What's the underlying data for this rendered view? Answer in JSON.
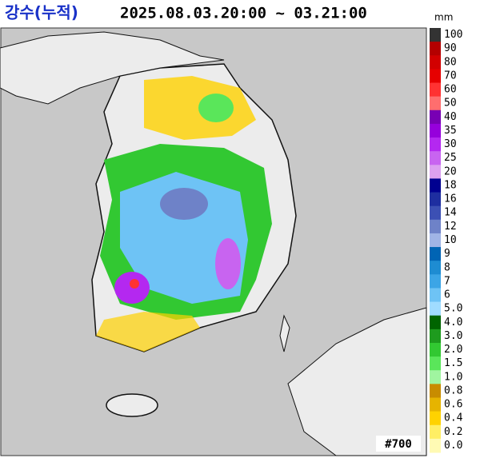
{
  "header": {
    "title": "강수(누적)",
    "period": "2025.08.03.20:00 ~ 03.21:00",
    "unit": "mm"
  },
  "legend": [
    {
      "label": "100",
      "color": "#333333"
    },
    {
      "label": "90",
      "color": "#b40000"
    },
    {
      "label": "80",
      "color": "#d20000"
    },
    {
      "label": "70",
      "color": "#e60000"
    },
    {
      "label": "60",
      "color": "#ff3232"
    },
    {
      "label": "50",
      "color": "#ff6e6e"
    },
    {
      "label": "40",
      "color": "#7800b4"
    },
    {
      "label": "35",
      "color": "#9600dc"
    },
    {
      "label": "30",
      "color": "#b428f0"
    },
    {
      "label": "25",
      "color": "#c864f0"
    },
    {
      "label": "20",
      "color": "#dca0f0"
    },
    {
      "label": "18",
      "color": "#000090"
    },
    {
      "label": "16",
      "color": "#1e2ea0"
    },
    {
      "label": "14",
      "color": "#3c50b4"
    },
    {
      "label": "12",
      "color": "#6e82c8"
    },
    {
      "label": "10",
      "color": "#a0b4e6"
    },
    {
      "label": "9",
      "color": "#0064b4"
    },
    {
      "label": "8",
      "color": "#1e8cd2"
    },
    {
      "label": "7",
      "color": "#3ca5e6"
    },
    {
      "label": "6",
      "color": "#6ec3f5"
    },
    {
      "label": "5.0",
      "color": "#a0dcff"
    },
    {
      "label": "4.0",
      "color": "#006400"
    },
    {
      "label": "3.0",
      "color": "#1e9b1e"
    },
    {
      "label": "2.0",
      "color": "#32c832"
    },
    {
      "label": "1.5",
      "color": "#5ae65a"
    },
    {
      "label": "1.0",
      "color": "#a0f5a0"
    },
    {
      "label": "0.8",
      "color": "#c88c00"
    },
    {
      "label": "0.6",
      "color": "#e6b400"
    },
    {
      "label": "0.4",
      "color": "#ffd200"
    },
    {
      "label": "0.2",
      "color": "#ffee64"
    },
    {
      "label": "0.0",
      "color": "#fffab4"
    }
  ],
  "stamp": "#700"
}
